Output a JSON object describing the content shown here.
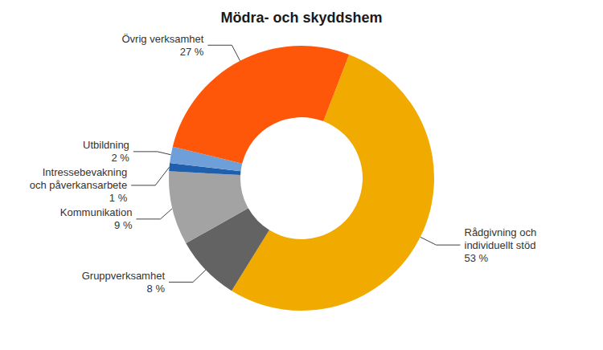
{
  "chart_data": {
    "type": "pie",
    "title": "Mödra- och skyddshem",
    "categories": [
      "Rådgivning och\nindividuellt stöd",
      "Gruppverksamhet",
      "Kommunikation",
      "Intressebevakning\noch påverkansarbete",
      "Utbildning",
      "Övrig verksamhet"
    ],
    "values": [
      53,
      8,
      9,
      1,
      2,
      27
    ],
    "value_labels": [
      "53 %",
      "8 %",
      "9 %",
      "1 %",
      "2 %",
      "27 %"
    ],
    "colors": [
      "#f0aa00",
      "#636363",
      "#a3a3a3",
      "#1f5fae",
      "#6f9fd8",
      "#ff570a"
    ],
    "data_labels": true
  }
}
